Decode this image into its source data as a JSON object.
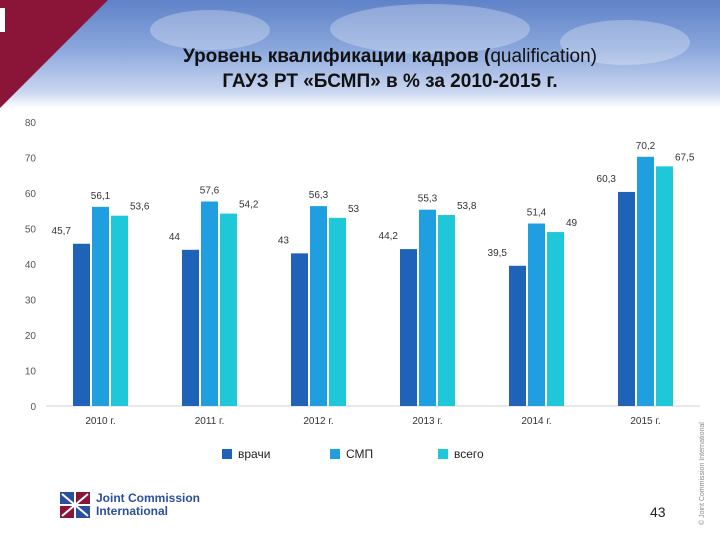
{
  "title": {
    "line1_bold": "Уровень квалификации кадров (",
    "line1_light": "qualification)",
    "line2": "ГАУЗ РТ «БСМП» в % за 2010-2015 г."
  },
  "chart_data": {
    "type": "bar",
    "categories": [
      "2010 г.",
      "2011 г.",
      "2012 г.",
      "2013 г.",
      "2014 г.",
      "2015 г."
    ],
    "series": [
      {
        "name": "врачи",
        "values": [
          45.7,
          44,
          43,
          44.2,
          39.5,
          60.3
        ],
        "labels": [
          "45,7",
          "44",
          "43",
          "44,2",
          "39,5",
          "60,3"
        ]
      },
      {
        "name": "СМП",
        "values": [
          56.1,
          57.6,
          56.3,
          55.3,
          51.4,
          70.2
        ],
        "labels": [
          "56,1",
          "57,6",
          "56,3",
          "55,3",
          "51,4",
          "70,2"
        ]
      },
      {
        "name": "всего",
        "values": [
          53.6,
          54.2,
          53,
          53.8,
          49,
          67.5
        ],
        "labels": [
          "53,6",
          "54,2",
          "53",
          "53,8",
          "49",
          "67,5"
        ]
      }
    ],
    "ylim": [
      0,
      80
    ],
    "yticks": [
      "0",
      "10",
      "20",
      "30",
      "40",
      "50",
      "60",
      "70",
      "80"
    ],
    "grid": false,
    "legend_position": "bottom"
  },
  "colors": {
    "врачи": "#1f63b8",
    "СМП": "#1f9ee0",
    "всего": "#1ec8d8",
    "brand": "#8b1538",
    "header": "#6b8bd0"
  },
  "footer": {
    "logo_line1": "Joint Commission",
    "logo_line2": "International",
    "logo_icon": "jci-logo-icon",
    "page_number": "43",
    "copyright": "© Joint Commission International"
  }
}
